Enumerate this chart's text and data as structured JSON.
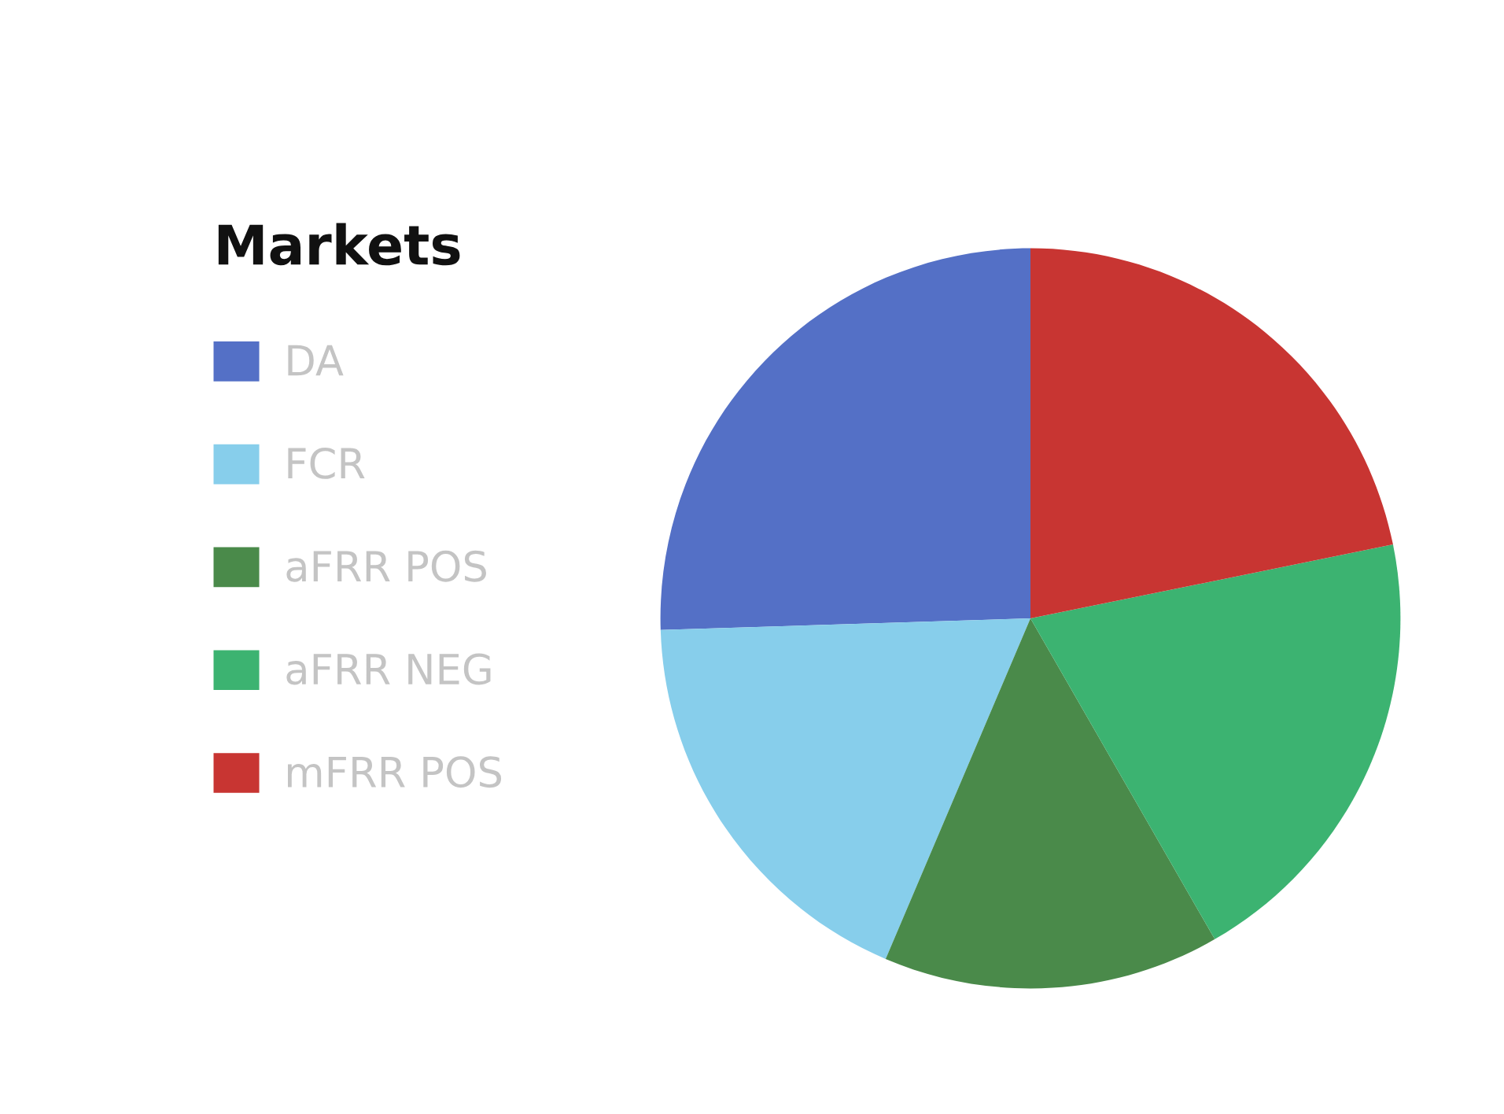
{
  "chart_data": {
    "type": "pie",
    "legend_title": "Markets",
    "legend": "left",
    "categories": [
      "DA",
      "FCR",
      "aFRR POS",
      "aFRR NEG",
      "mFRR POS"
    ],
    "values": [
      25.5,
      18.1,
      14.7,
      19.9,
      21.8
    ],
    "colors": [
      "#5470c6",
      "#87ceeb",
      "#4a8a4a",
      "#3cb371",
      "#c83532"
    ]
  }
}
